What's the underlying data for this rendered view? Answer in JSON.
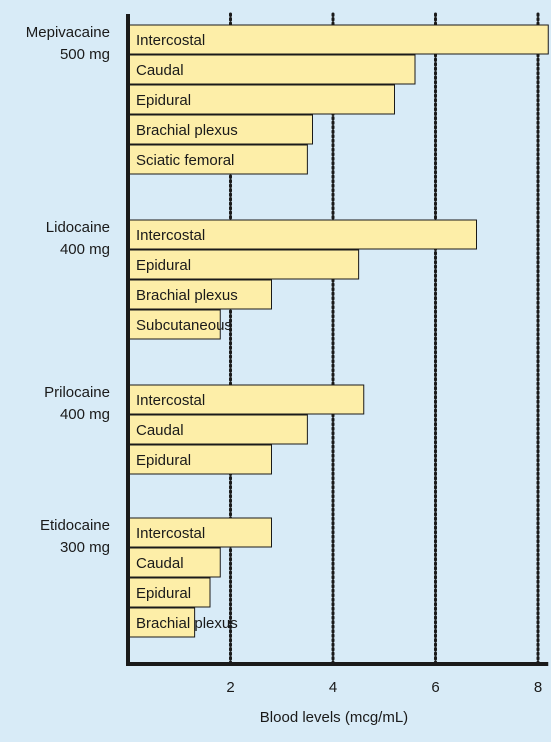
{
  "colors": {
    "background": "#d8ebf7",
    "bar_fill": "#fdeea8",
    "bar_stroke": "#1a1a1a",
    "axis": "#1a1a1a",
    "grid": "#1a1a1a",
    "text": "#1a1a1a"
  },
  "chart_data": {
    "type": "bar",
    "orientation": "horizontal",
    "xlabel": "Blood levels (mcg/mL)",
    "xlim": [
      0,
      8.2
    ],
    "xticks": [
      2,
      4,
      6,
      8
    ],
    "grid": "dotted vertical lines at 2, 4, 6, 8",
    "groups": [
      {
        "drug": "Mepivacaine",
        "dose": "500 mg",
        "bars": [
          {
            "label": "Intercostal",
            "value": 8.2
          },
          {
            "label": "Caudal",
            "value": 5.6
          },
          {
            "label": "Epidural",
            "value": 5.2
          },
          {
            "label": "Brachial plexus",
            "value": 3.6
          },
          {
            "label": "Sciatic femoral",
            "value": 3.5
          }
        ]
      },
      {
        "drug": "Lidocaine",
        "dose": "400 mg",
        "bars": [
          {
            "label": "Intercostal",
            "value": 6.8
          },
          {
            "label": "Epidural",
            "value": 4.5
          },
          {
            "label": "Brachial plexus",
            "value": 2.8
          },
          {
            "label": "Subcutaneous",
            "value": 1.8
          }
        ]
      },
      {
        "drug": "Prilocaine",
        "dose": "400 mg",
        "bars": [
          {
            "label": "Intercostal",
            "value": 4.6
          },
          {
            "label": "Caudal",
            "value": 3.5
          },
          {
            "label": "Epidural",
            "value": 2.8
          }
        ]
      },
      {
        "drug": "Etidocaine",
        "dose": "300 mg",
        "bars": [
          {
            "label": "Intercostal",
            "value": 2.8
          },
          {
            "label": "Caudal",
            "value": 1.8
          },
          {
            "label": "Epidural",
            "value": 1.6
          },
          {
            "label": "Brachial plexus",
            "value": 1.3
          }
        ]
      }
    ]
  }
}
